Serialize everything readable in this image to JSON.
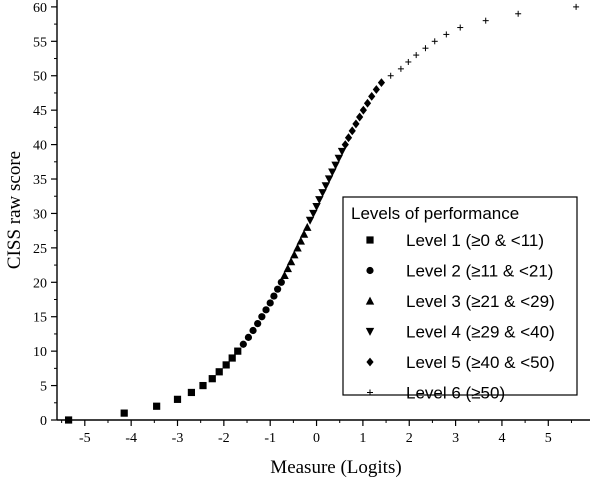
{
  "chart_data": {
    "type": "scatter",
    "title": "",
    "xlabel": "Measure (Logits)",
    "ylabel": "CISS raw score",
    "xlim": [
      -5.6,
      5.9
    ],
    "ylim": [
      0,
      61
    ],
    "x_ticks": [
      -5,
      -4,
      -3,
      -2,
      -1,
      0,
      1,
      2,
      3,
      4,
      5
    ],
    "y_ticks": [
      0,
      5,
      10,
      15,
      20,
      25,
      30,
      35,
      40,
      45,
      50,
      55,
      60
    ],
    "x_tick_labels": [
      "-5",
      "-4",
      "-3",
      "-2",
      "-1",
      "0",
      "1",
      "2",
      "3",
      "4",
      "5"
    ],
    "y_tick_labels": [
      "0",
      "5",
      "10",
      "15",
      "20",
      "25",
      "30",
      "35",
      "40",
      "45",
      "50",
      "55",
      "60"
    ],
    "grid": false,
    "legend": {
      "title": "Levels of performance",
      "placement": "right",
      "entries": [
        {
          "marker": "square",
          "label": "Level 1 (≥0 & <11)"
        },
        {
          "marker": "circle",
          "label": "Level 2 (≥11 & <21)"
        },
        {
          "marker": "triangle-up",
          "label": "Level 3 (≥21 & <29)"
        },
        {
          "marker": "triangle-down",
          "label": "Level 4 (≥29 & <40)"
        },
        {
          "marker": "diamond",
          "label": "Level 5 (≥40 & <50)"
        },
        {
          "marker": "plus",
          "label": "Level 6 (≥50)"
        }
      ]
    },
    "series": [
      {
        "marker": "square",
        "points": [
          [
            -5.35,
            0
          ],
          [
            -4.15,
            1
          ],
          [
            -3.45,
            2
          ],
          [
            -3.0,
            3
          ],
          [
            -2.7,
            4
          ],
          [
            -2.45,
            5
          ],
          [
            -2.25,
            6
          ],
          [
            -2.1,
            7
          ],
          [
            -1.95,
            8
          ],
          [
            -1.82,
            9
          ],
          [
            -1.7,
            10
          ]
        ]
      },
      {
        "marker": "circle",
        "points": [
          [
            -1.58,
            11
          ],
          [
            -1.47,
            12
          ],
          [
            -1.37,
            13
          ],
          [
            -1.27,
            14
          ],
          [
            -1.18,
            15
          ],
          [
            -1.09,
            16
          ],
          [
            -1.0,
            17
          ],
          [
            -0.92,
            18
          ],
          [
            -0.84,
            19
          ],
          [
            -0.76,
            20
          ]
        ]
      },
      {
        "marker": "triangle-up",
        "points": [
          [
            -0.69,
            21
          ],
          [
            -0.62,
            22
          ],
          [
            -0.55,
            23
          ],
          [
            -0.48,
            24
          ],
          [
            -0.41,
            25
          ],
          [
            -0.34,
            26
          ],
          [
            -0.27,
            27
          ],
          [
            -0.2,
            28
          ]
        ]
      },
      {
        "marker": "triangle-down",
        "points": [
          [
            -0.14,
            29
          ],
          [
            -0.07,
            30
          ],
          [
            0.0,
            31
          ],
          [
            0.06,
            32
          ],
          [
            0.13,
            33
          ],
          [
            0.2,
            34
          ],
          [
            0.27,
            35
          ],
          [
            0.34,
            36
          ],
          [
            0.41,
            37
          ],
          [
            0.48,
            38
          ],
          [
            0.55,
            39
          ]
        ]
      },
      {
        "marker": "diamond",
        "points": [
          [
            0.62,
            40
          ],
          [
            0.69,
            41
          ],
          [
            0.77,
            42
          ],
          [
            0.85,
            43
          ],
          [
            0.93,
            44
          ],
          [
            1.01,
            45
          ],
          [
            1.1,
            46
          ],
          [
            1.19,
            47
          ],
          [
            1.29,
            48
          ],
          [
            1.4,
            49
          ]
        ]
      },
      {
        "marker": "plus",
        "points": [
          [
            1.6,
            50
          ],
          [
            1.82,
            51
          ],
          [
            1.98,
            52
          ],
          [
            2.15,
            53
          ],
          [
            2.35,
            54
          ],
          [
            2.55,
            55
          ],
          [
            2.8,
            56
          ],
          [
            3.1,
            57
          ],
          [
            3.65,
            58
          ],
          [
            4.35,
            59
          ],
          [
            5.6,
            60
          ]
        ]
      }
    ]
  }
}
